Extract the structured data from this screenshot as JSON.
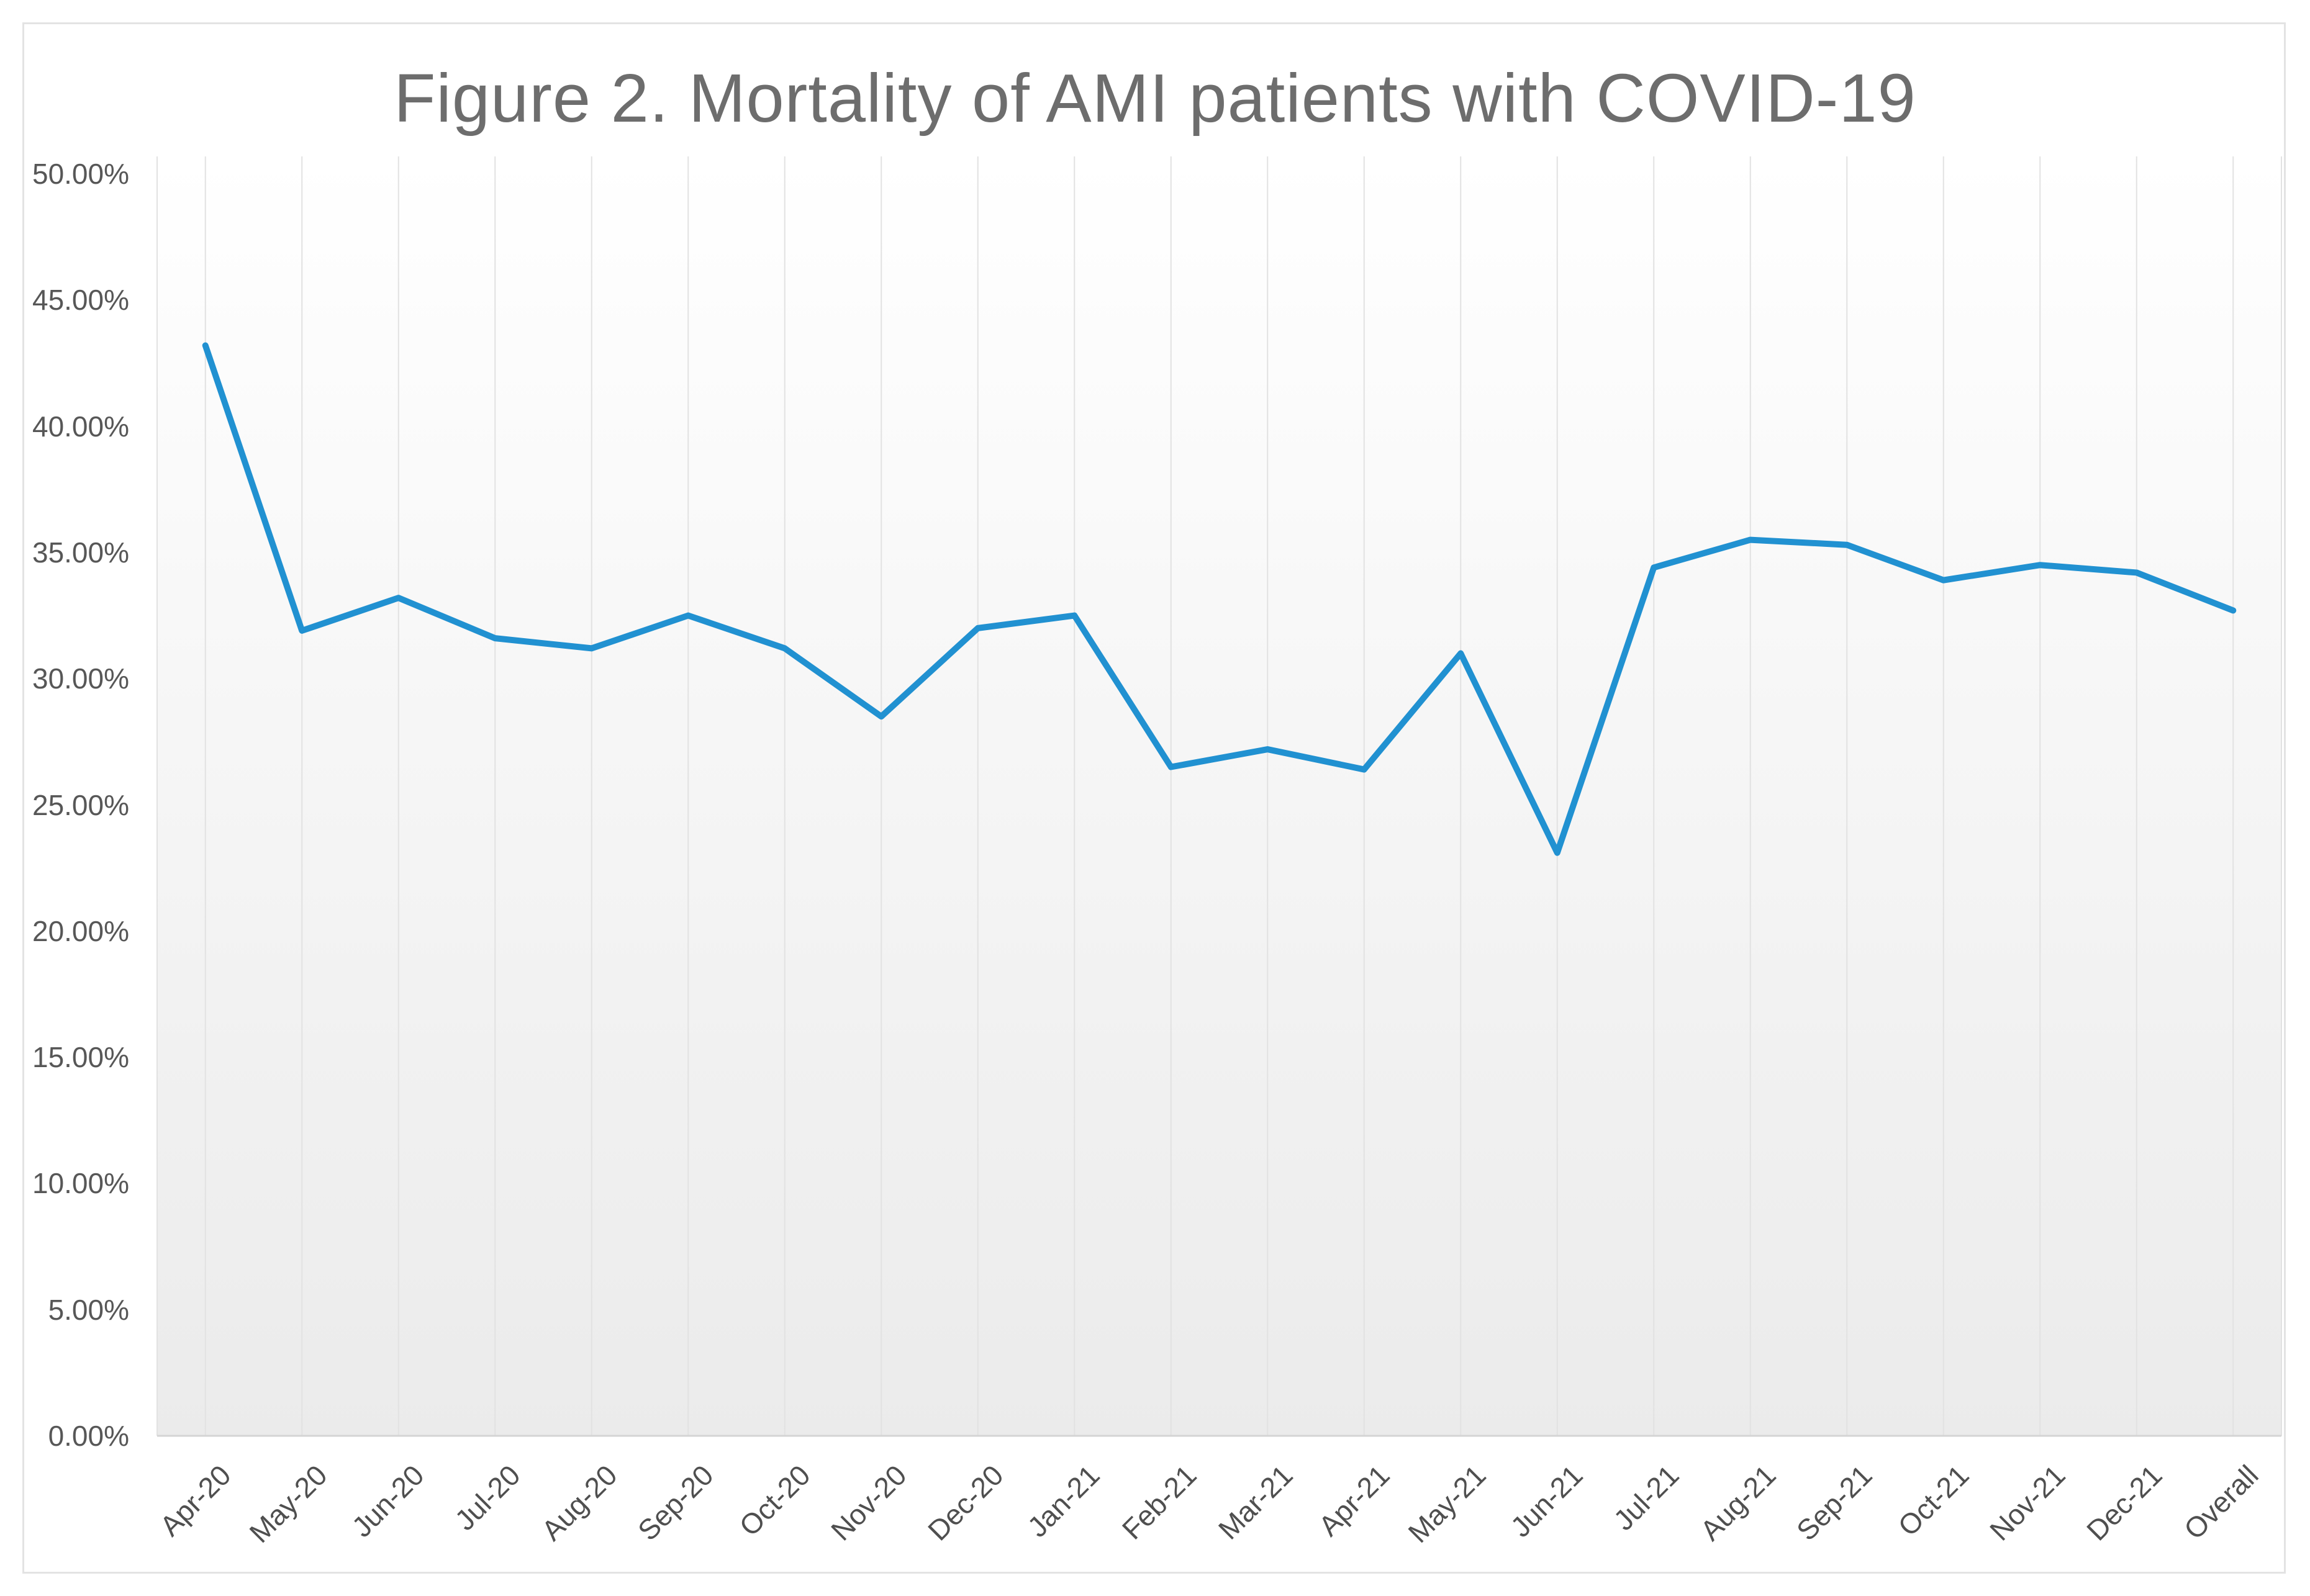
{
  "title": "Figure 2. Mortality of AMI patients with COVID-19",
  "colors": {
    "line": "#2191d1",
    "gridline": "#e2e2e2",
    "axis_line": "#d4d4d4",
    "plot_bg_top": "#ffffff",
    "plot_bg_bottom": "#ebebeb",
    "title_text": "#6d6d6d",
    "tick_text": "#575757",
    "frame_border": "#e3e3e3"
  },
  "chart_data": {
    "type": "line",
    "title": "Figure 2. Mortality of AMI patients with COVID-19",
    "xlabel": "",
    "ylabel": "",
    "ylim": [
      0,
      50
    ],
    "y_tick_step": 5,
    "y_ticks": [
      "0.00%",
      "5.00%",
      "10.00%",
      "15.00%",
      "20.00%",
      "25.00%",
      "30.00%",
      "35.00%",
      "40.00%",
      "45.00%",
      "50.00%"
    ],
    "grid": "vertical-only",
    "legend": "none",
    "categories": [
      "Apr-20",
      "May-20",
      "Jun-20",
      "Jul-20",
      "Aug-20",
      "Sep-20",
      "Oct-20",
      "Nov-20",
      "Dec-20",
      "Jan-21",
      "Feb-21",
      "Mar-21",
      "Apr-21",
      "May-21",
      "Jun-21",
      "Jul-21",
      "Aug-21",
      "Sep-21",
      "Oct-21",
      "Nov-21",
      "Dec-21",
      "Overall"
    ],
    "series": [
      {
        "name": "Mortality of AMI patients with COVID-19",
        "unit": "%",
        "values": [
          43.2,
          31.9,
          33.2,
          31.6,
          31.2,
          32.5,
          31.2,
          28.5,
          32.0,
          32.5,
          26.5,
          27.2,
          26.4,
          31.0,
          23.1,
          34.4,
          35.5,
          35.3,
          33.9,
          34.5,
          34.2,
          32.7
        ]
      }
    ]
  }
}
